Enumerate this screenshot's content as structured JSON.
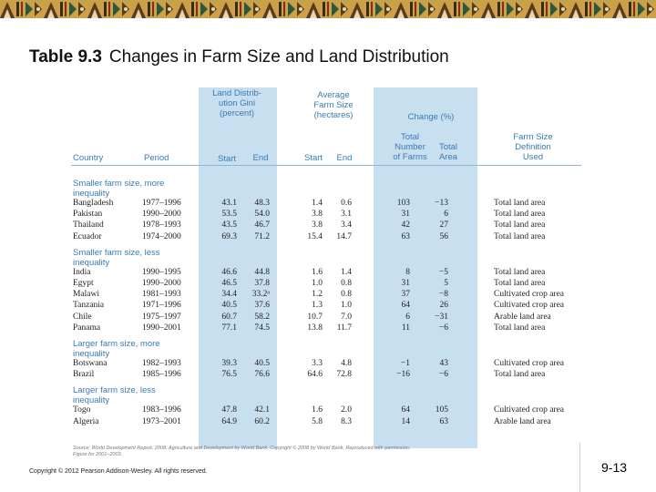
{
  "slide": {
    "title_bold": "Table 9.3",
    "title_rest": "Changes in Farm Size and Land Distribution",
    "copyright": "Copyright © 2012 Pearson Addison-Wesley. All rights reserved.",
    "page_number": "9-13"
  },
  "colors": {
    "banner": "#c9a24a",
    "band": "#c8dff0",
    "header_text": "#3a7ab5"
  },
  "header": {
    "country": "Country",
    "period": "Period",
    "gini": "Land Distrib-\nution Gini\n(percent)",
    "farm_size": "Average\nFarm Size\n(hectares)",
    "change": "Change (%)",
    "start": "Start",
    "end": "End",
    "total_farms": "Total\nNumber\nof Farms",
    "total_area": "Total\nArea",
    "definition": "Farm Size\nDefinition\nUsed"
  },
  "groups": [
    {
      "label": "Smaller farm size, more\ninequality",
      "rows": [
        {
          "country": "Bangladesh",
          "period": "1977–1996",
          "gini_start": "43.1",
          "gini_end": "48.3",
          "fs_start": "1.4",
          "fs_end": "0.6",
          "chg_farms": "103",
          "chg_area": "−13",
          "definition": "Total land area"
        },
        {
          "country": "Pakistan",
          "period": "1990–2000",
          "gini_start": "53.5",
          "gini_end": "54.0",
          "fs_start": "3.8",
          "fs_end": "3.1",
          "chg_farms": "31",
          "chg_area": "6",
          "definition": "Total land area"
        },
        {
          "country": "Thailand",
          "period": "1978–1993",
          "gini_start": "43.5",
          "gini_end": "46.7",
          "fs_start": "3.8",
          "fs_end": "3.4",
          "chg_farms": "42",
          "chg_area": "27",
          "definition": "Total land area"
        },
        {
          "country": "Ecuador",
          "period": "1974–2000",
          "gini_start": "69.3",
          "gini_end": "71.2",
          "fs_start": "15.4",
          "fs_end": "14.7",
          "chg_farms": "63",
          "chg_area": "56",
          "definition": "Total land area"
        }
      ]
    },
    {
      "label": "Smaller farm size, less\ninequality",
      "rows": [
        {
          "country": "India",
          "period": "1990–1995",
          "gini_start": "46.6",
          "gini_end": "44.8",
          "fs_start": "1.6",
          "fs_end": "1.4",
          "chg_farms": "8",
          "chg_area": "−5",
          "definition": "Total land area"
        },
        {
          "country": "Egypt",
          "period": "1990–2000",
          "gini_start": "46.5",
          "gini_end": "37.8",
          "fs_start": "1.0",
          "fs_end": "0.8",
          "chg_farms": "31",
          "chg_area": "5",
          "definition": "Total land area"
        },
        {
          "country": "Malawi",
          "period": "1981–1993",
          "gini_start": "34.4",
          "gini_end": "33.2ᵃ",
          "fs_start": "1.2",
          "fs_end": "0.8",
          "chg_farms": "37",
          "chg_area": "−8",
          "definition": "Cultivated crop area"
        },
        {
          "country": "Tanzania",
          "period": "1971–1996",
          "gini_start": "40.5",
          "gini_end": "37.6",
          "fs_start": "1.3",
          "fs_end": "1.0",
          "chg_farms": "64",
          "chg_area": "26",
          "definition": "Cultivated crop area"
        },
        {
          "country": "Chile",
          "period": "1975–1997",
          "gini_start": "60.7",
          "gini_end": "58.2",
          "fs_start": "10.7",
          "fs_end": "7.0",
          "chg_farms": "6",
          "chg_area": "−31",
          "definition": "Arable land area"
        },
        {
          "country": "Panama",
          "period": "1990–2001",
          "gini_start": "77.1",
          "gini_end": "74.5",
          "fs_start": "13.8",
          "fs_end": "11.7",
          "chg_farms": "11",
          "chg_area": "−6",
          "definition": "Total land area"
        }
      ]
    },
    {
      "label": "Larger farm size, more\ninequality",
      "rows": [
        {
          "country": "Botswana",
          "period": "1982–1993",
          "gini_start": "39.3",
          "gini_end": "40.5",
          "fs_start": "3.3",
          "fs_end": "4.8",
          "chg_farms": "−1",
          "chg_area": "43",
          "definition": "Cultivated crop area"
        },
        {
          "country": "Brazil",
          "period": "1985–1996",
          "gini_start": "76.5",
          "gini_end": "76.6",
          "fs_start": "64.6",
          "fs_end": "72.8",
          "chg_farms": "−16",
          "chg_area": "−6",
          "definition": "Total land area"
        }
      ]
    },
    {
      "label": "Larger farm size, less\ninequality",
      "rows": [
        {
          "country": "Togo",
          "period": "1983–1996",
          "gini_start": "47.8",
          "gini_end": "42.1",
          "fs_start": "1.6",
          "fs_end": "2.0",
          "chg_farms": "64",
          "chg_area": "105",
          "definition": "Cultivated crop area"
        },
        {
          "country": "Algeria",
          "period": "1973–2001",
          "gini_start": "64.9",
          "gini_end": "60.2",
          "fs_start": "5.8",
          "fs_end": "8.3",
          "chg_farms": "14",
          "chg_area": "63",
          "definition": "Arable land area"
        }
      ]
    }
  ],
  "source_note": "Source: World Development Report, 2008: Agriculture and Development by World Bank. Copyright © 2008 by World Bank. Reproduced with permission.\nFigure for 2001–2003."
}
